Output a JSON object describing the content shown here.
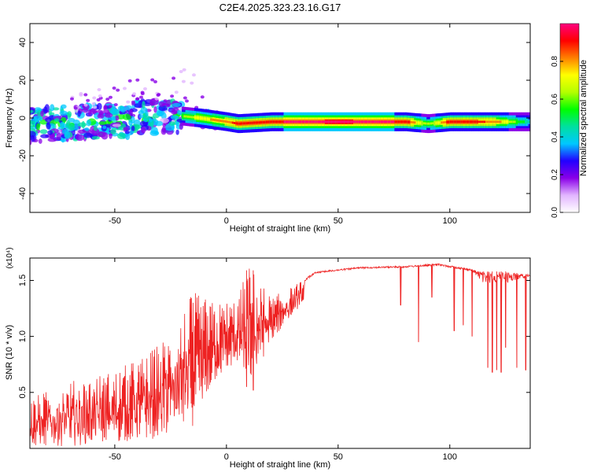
{
  "title": "C2E4.2025.323.23.16.G17",
  "chart_data": [
    {
      "type": "heatmap",
      "name": "spectrogram",
      "xlabel": "Height of straight line (km)",
      "ylabel": "Frequency (Hz)",
      "xlim": [
        -88,
        136
      ],
      "ylim": [
        -50,
        50
      ],
      "xticks": [
        -50,
        0,
        50,
        100
      ],
      "yticks": [
        -40,
        -20,
        0,
        20,
        40
      ],
      "colorbar": {
        "label": "Normalized spectral amplitude",
        "range": [
          0.0,
          1.0
        ],
        "ticks": [
          0.0,
          0.2,
          0.4,
          0.6,
          0.8
        ],
        "tick_labels": [
          "0.0",
          "0.2",
          "0.4",
          "0.6",
          "0.8"
        ],
        "colors": [
          "#ffffff",
          "#e2b5ff",
          "#8a00e8",
          "#2200ff",
          "#00c8ff",
          "#00e0a0",
          "#00ff00",
          "#b4ff00",
          "#ffff00",
          "#ff8000",
          "#ff0000",
          "#ff0080"
        ]
      },
      "ridge": [
        {
          "x": -88,
          "f": -4,
          "amp": 0.3
        },
        {
          "x": -75,
          "f": -3,
          "amp": 0.35
        },
        {
          "x": -60,
          "f": -2,
          "amp": 0.35
        },
        {
          "x": -45,
          "f": -1,
          "amp": 0.4
        },
        {
          "x": -30,
          "f": 1,
          "amp": 0.45
        },
        {
          "x": -20,
          "f": 1,
          "amp": 0.55
        },
        {
          "x": -12,
          "f": 0,
          "amp": 0.7
        },
        {
          "x": 0,
          "f": -2,
          "amp": 0.8
        },
        {
          "x": 5,
          "f": -3,
          "amp": 0.85
        },
        {
          "x": 20,
          "f": -2,
          "amp": 0.9
        },
        {
          "x": 50,
          "f": -2,
          "amp": 0.95
        },
        {
          "x": 80,
          "f": -2,
          "amp": 0.9
        },
        {
          "x": 90,
          "f": -3,
          "amp": 0.55
        },
        {
          "x": 100,
          "f": -2,
          "amp": 0.9
        },
        {
          "x": 120,
          "f": -2,
          "amp": 0.8
        },
        {
          "x": 136,
          "f": -2,
          "amp": 0.4
        }
      ]
    },
    {
      "type": "line",
      "name": "snr",
      "xlabel": "Height of straight line (km)",
      "ylabel": "SNR (10 * v/v)",
      "y_multiplier": "(x10⁴)",
      "color": "#ee2222",
      "xlim": [
        -88,
        136
      ],
      "ylim": [
        0,
        1.7
      ],
      "xticks": [
        -50,
        0,
        50,
        100
      ],
      "yticks": [
        0.5,
        1.0,
        1.5
      ],
      "ytick_labels": [
        "0.5",
        "1.0",
        "1.5"
      ],
      "envelope": [
        {
          "x": -88,
          "low": 0.02,
          "high": 0.45
        },
        {
          "x": -70,
          "low": 0.02,
          "high": 0.6
        },
        {
          "x": -50,
          "low": 0.05,
          "high": 0.7
        },
        {
          "x": -35,
          "low": 0.08,
          "high": 0.85
        },
        {
          "x": -25,
          "low": 0.1,
          "high": 1.05
        },
        {
          "x": -15,
          "low": 0.2,
          "high": 1.4
        },
        {
          "x": -5,
          "low": 0.6,
          "high": 1.3
        },
        {
          "x": 5,
          "low": 0.75,
          "high": 1.35
        },
        {
          "x": 10,
          "low": 0.55,
          "high": 1.65
        },
        {
          "x": 20,
          "low": 0.95,
          "high": 1.35
        },
        {
          "x": 30,
          "low": 1.2,
          "high": 1.45
        },
        {
          "x": 40,
          "low": 1.45,
          "high": 1.58
        },
        {
          "x": 60,
          "low": 1.5,
          "high": 1.62
        },
        {
          "x": 80,
          "low": 1.5,
          "high": 1.63
        },
        {
          "x": 95,
          "low": 1.5,
          "high": 1.65
        },
        {
          "x": 110,
          "low": 1.45,
          "high": 1.6
        },
        {
          "x": 115,
          "low": 0.7,
          "high": 1.58
        },
        {
          "x": 125,
          "low": 0.7,
          "high": 1.58
        },
        {
          "x": 136,
          "low": 1.45,
          "high": 1.55
        }
      ],
      "dips": [
        {
          "x": 9,
          "y": 0.55
        },
        {
          "x": 12,
          "y": 0.52
        },
        {
          "x": 78,
          "y": 1.28
        },
        {
          "x": 86,
          "y": 0.95
        },
        {
          "x": 92,
          "y": 1.35
        },
        {
          "x": 102,
          "y": 1.05
        },
        {
          "x": 106,
          "y": 1.1
        },
        {
          "x": 110,
          "y": 1.0
        },
        {
          "x": 117,
          "y": 0.72
        },
        {
          "x": 119,
          "y": 0.68
        },
        {
          "x": 121,
          "y": 0.7
        },
        {
          "x": 123,
          "y": 0.68
        },
        {
          "x": 125,
          "y": 0.9
        },
        {
          "x": 130,
          "y": 0.72
        },
        {
          "x": 134,
          "y": 0.7
        }
      ]
    }
  ]
}
